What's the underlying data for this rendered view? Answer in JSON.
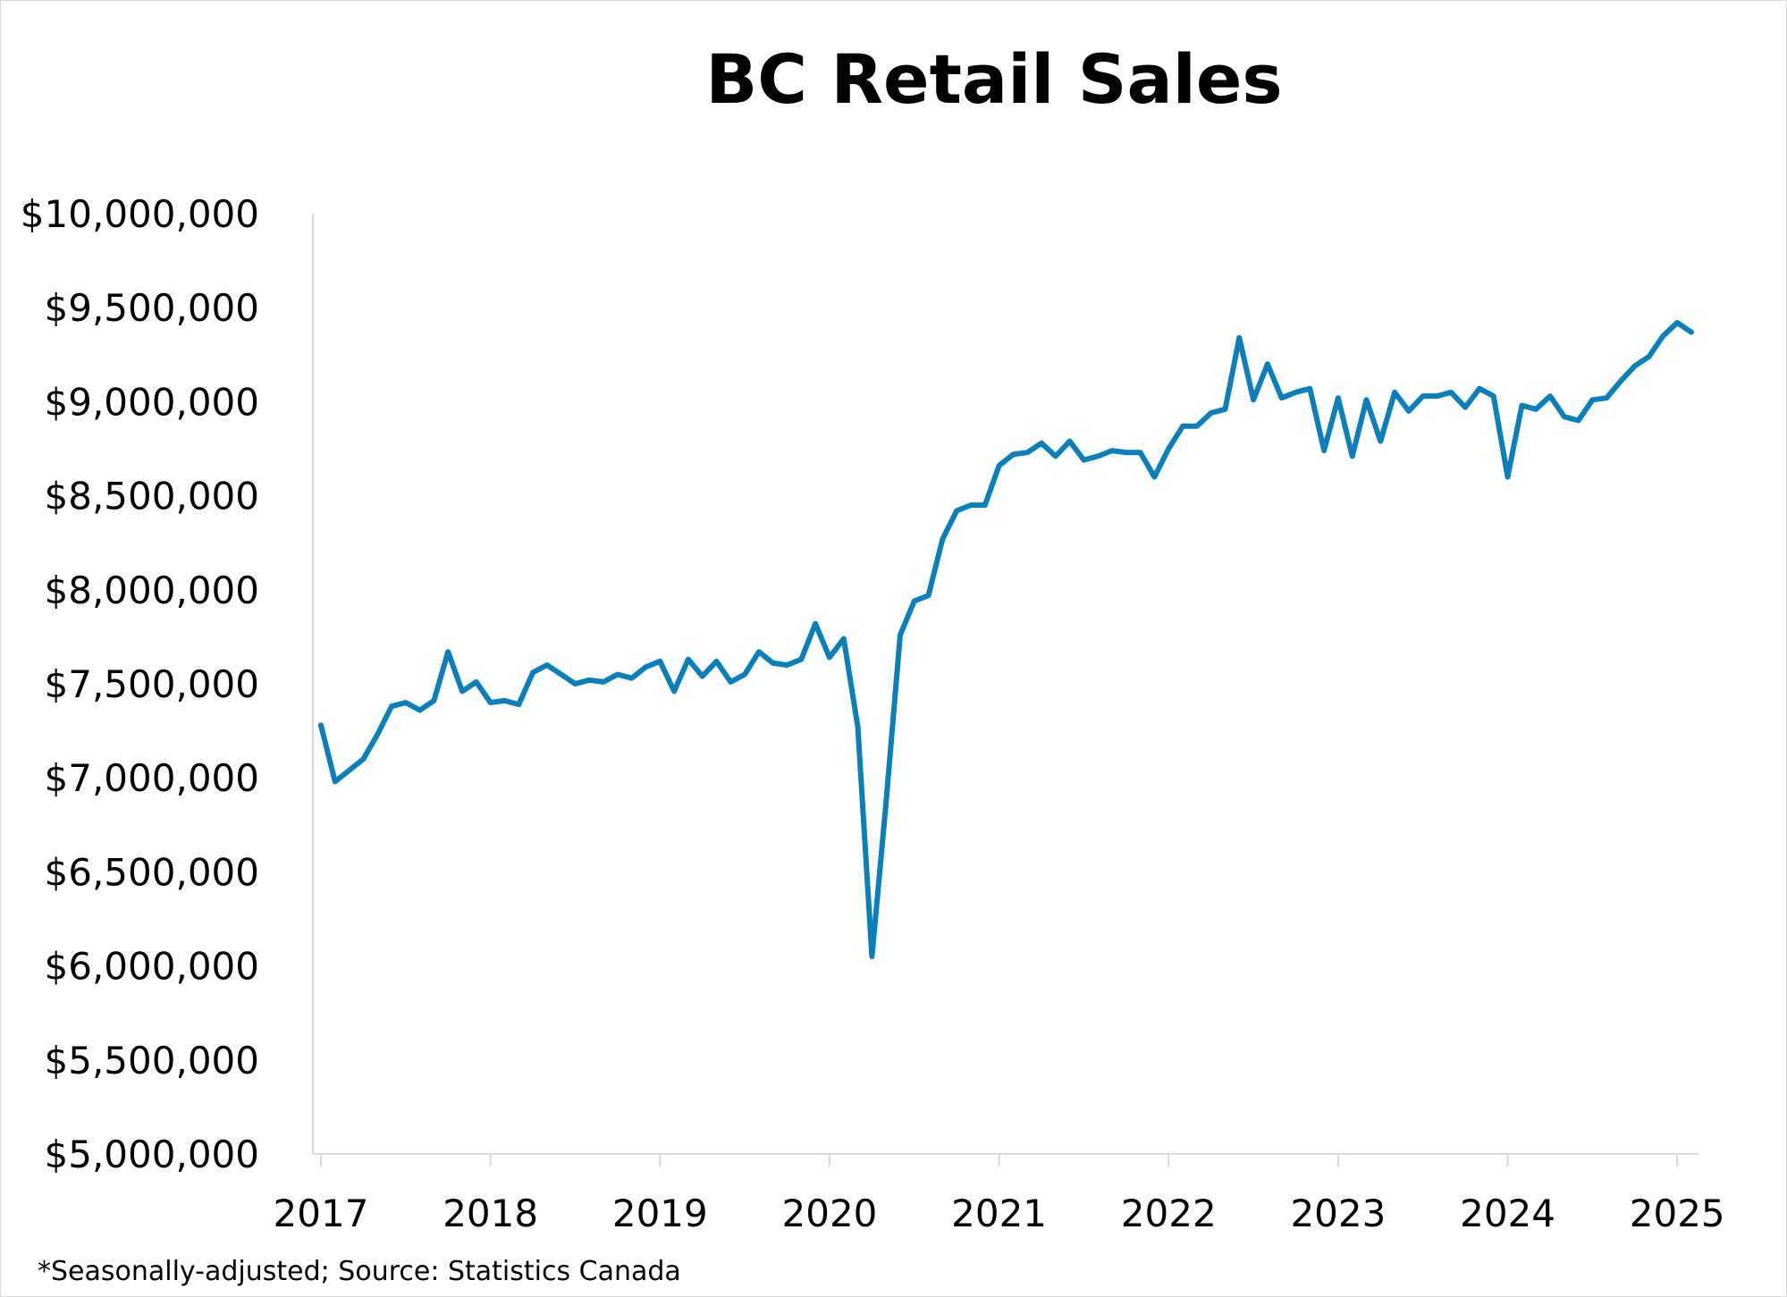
{
  "chart_data": {
    "type": "line",
    "title": "BC Retail Sales",
    "footnote": "*Seasonally-adjusted;  Source: Statistics Canada",
    "xlabel": "",
    "ylabel": "",
    "ylim": [
      5000000,
      10000000
    ],
    "y_ticks": [
      5000000,
      5500000,
      6000000,
      6500000,
      7000000,
      7500000,
      8000000,
      8500000,
      9000000,
      9500000,
      10000000
    ],
    "y_tick_labels": [
      "$5,000,000",
      "$5,500,000",
      "$6,000,000",
      "$6,500,000",
      "$7,000,000",
      "$7,500,000",
      "$8,000,000",
      "$8,500,000",
      "$9,000,000",
      "$9,500,000",
      "$10,000,000"
    ],
    "x_ticks": [
      "2017",
      "2018",
      "2019",
      "2020",
      "2021",
      "2022",
      "2023",
      "2024",
      "2025"
    ],
    "x_range": [
      "2017-01",
      "2025-02"
    ],
    "grid": false,
    "legend": "none",
    "color": "#0a7fbd",
    "series": [
      {
        "name": "",
        "x": [
          "2017-01",
          "2017-02",
          "2017-03",
          "2017-04",
          "2017-05",
          "2017-06",
          "2017-07",
          "2017-08",
          "2017-09",
          "2017-10",
          "2017-11",
          "2017-12",
          "2018-01",
          "2018-02",
          "2018-03",
          "2018-04",
          "2018-05",
          "2018-06",
          "2018-07",
          "2018-08",
          "2018-09",
          "2018-10",
          "2018-11",
          "2018-12",
          "2019-01",
          "2019-02",
          "2019-03",
          "2019-04",
          "2019-05",
          "2019-06",
          "2019-07",
          "2019-08",
          "2019-09",
          "2019-10",
          "2019-11",
          "2019-12",
          "2020-01",
          "2020-02",
          "2020-03",
          "2020-04",
          "2020-05",
          "2020-06",
          "2020-07",
          "2020-08",
          "2020-09",
          "2020-10",
          "2020-11",
          "2020-12",
          "2021-01",
          "2021-02",
          "2021-03",
          "2021-04",
          "2021-05",
          "2021-06",
          "2021-07",
          "2021-08",
          "2021-09",
          "2021-10",
          "2021-11",
          "2021-12",
          "2022-01",
          "2022-02",
          "2022-03",
          "2022-04",
          "2022-05",
          "2022-06",
          "2022-07",
          "2022-08",
          "2022-09",
          "2022-10",
          "2022-11",
          "2022-12",
          "2023-01",
          "2023-02",
          "2023-03",
          "2023-04",
          "2023-05",
          "2023-06",
          "2023-07",
          "2023-08",
          "2023-09",
          "2023-10",
          "2023-11",
          "2023-12",
          "2024-01",
          "2024-02",
          "2024-03",
          "2024-04",
          "2024-05",
          "2024-06",
          "2024-07",
          "2024-08",
          "2024-09",
          "2024-10",
          "2024-11",
          "2024-12",
          "2025-01",
          "2025-02"
        ],
        "values": [
          7280000,
          6980000,
          7040000,
          7100000,
          7230000,
          7380000,
          7400000,
          7360000,
          7410000,
          7670000,
          7460000,
          7510000,
          7400000,
          7410000,
          7390000,
          7560000,
          7600000,
          7550000,
          7500000,
          7520000,
          7510000,
          7550000,
          7530000,
          7590000,
          7620000,
          7460000,
          7630000,
          7540000,
          7620000,
          7510000,
          7550000,
          7670000,
          7610000,
          7600000,
          7630000,
          7820000,
          7640000,
          7740000,
          7270000,
          6050000,
          6870000,
          7760000,
          7940000,
          7970000,
          8270000,
          8420000,
          8450000,
          8450000,
          8660000,
          8720000,
          8730000,
          8780000,
          8710000,
          8790000,
          8690000,
          8710000,
          8740000,
          8730000,
          8730000,
          8600000,
          8750000,
          8870000,
          8870000,
          8940000,
          8960000,
          9340000,
          9010000,
          9200000,
          9020000,
          9050000,
          9070000,
          8740000,
          9020000,
          8710000,
          9010000,
          8790000,
          9050000,
          8950000,
          9030000,
          9030000,
          9050000,
          8970000,
          9070000,
          9030000,
          8600000,
          8980000,
          8960000,
          9030000,
          8920000,
          8900000,
          9010000,
          9020000,
          9110000,
          9190000,
          9240000,
          9350000,
          9420000,
          9370000
        ]
      }
    ]
  }
}
